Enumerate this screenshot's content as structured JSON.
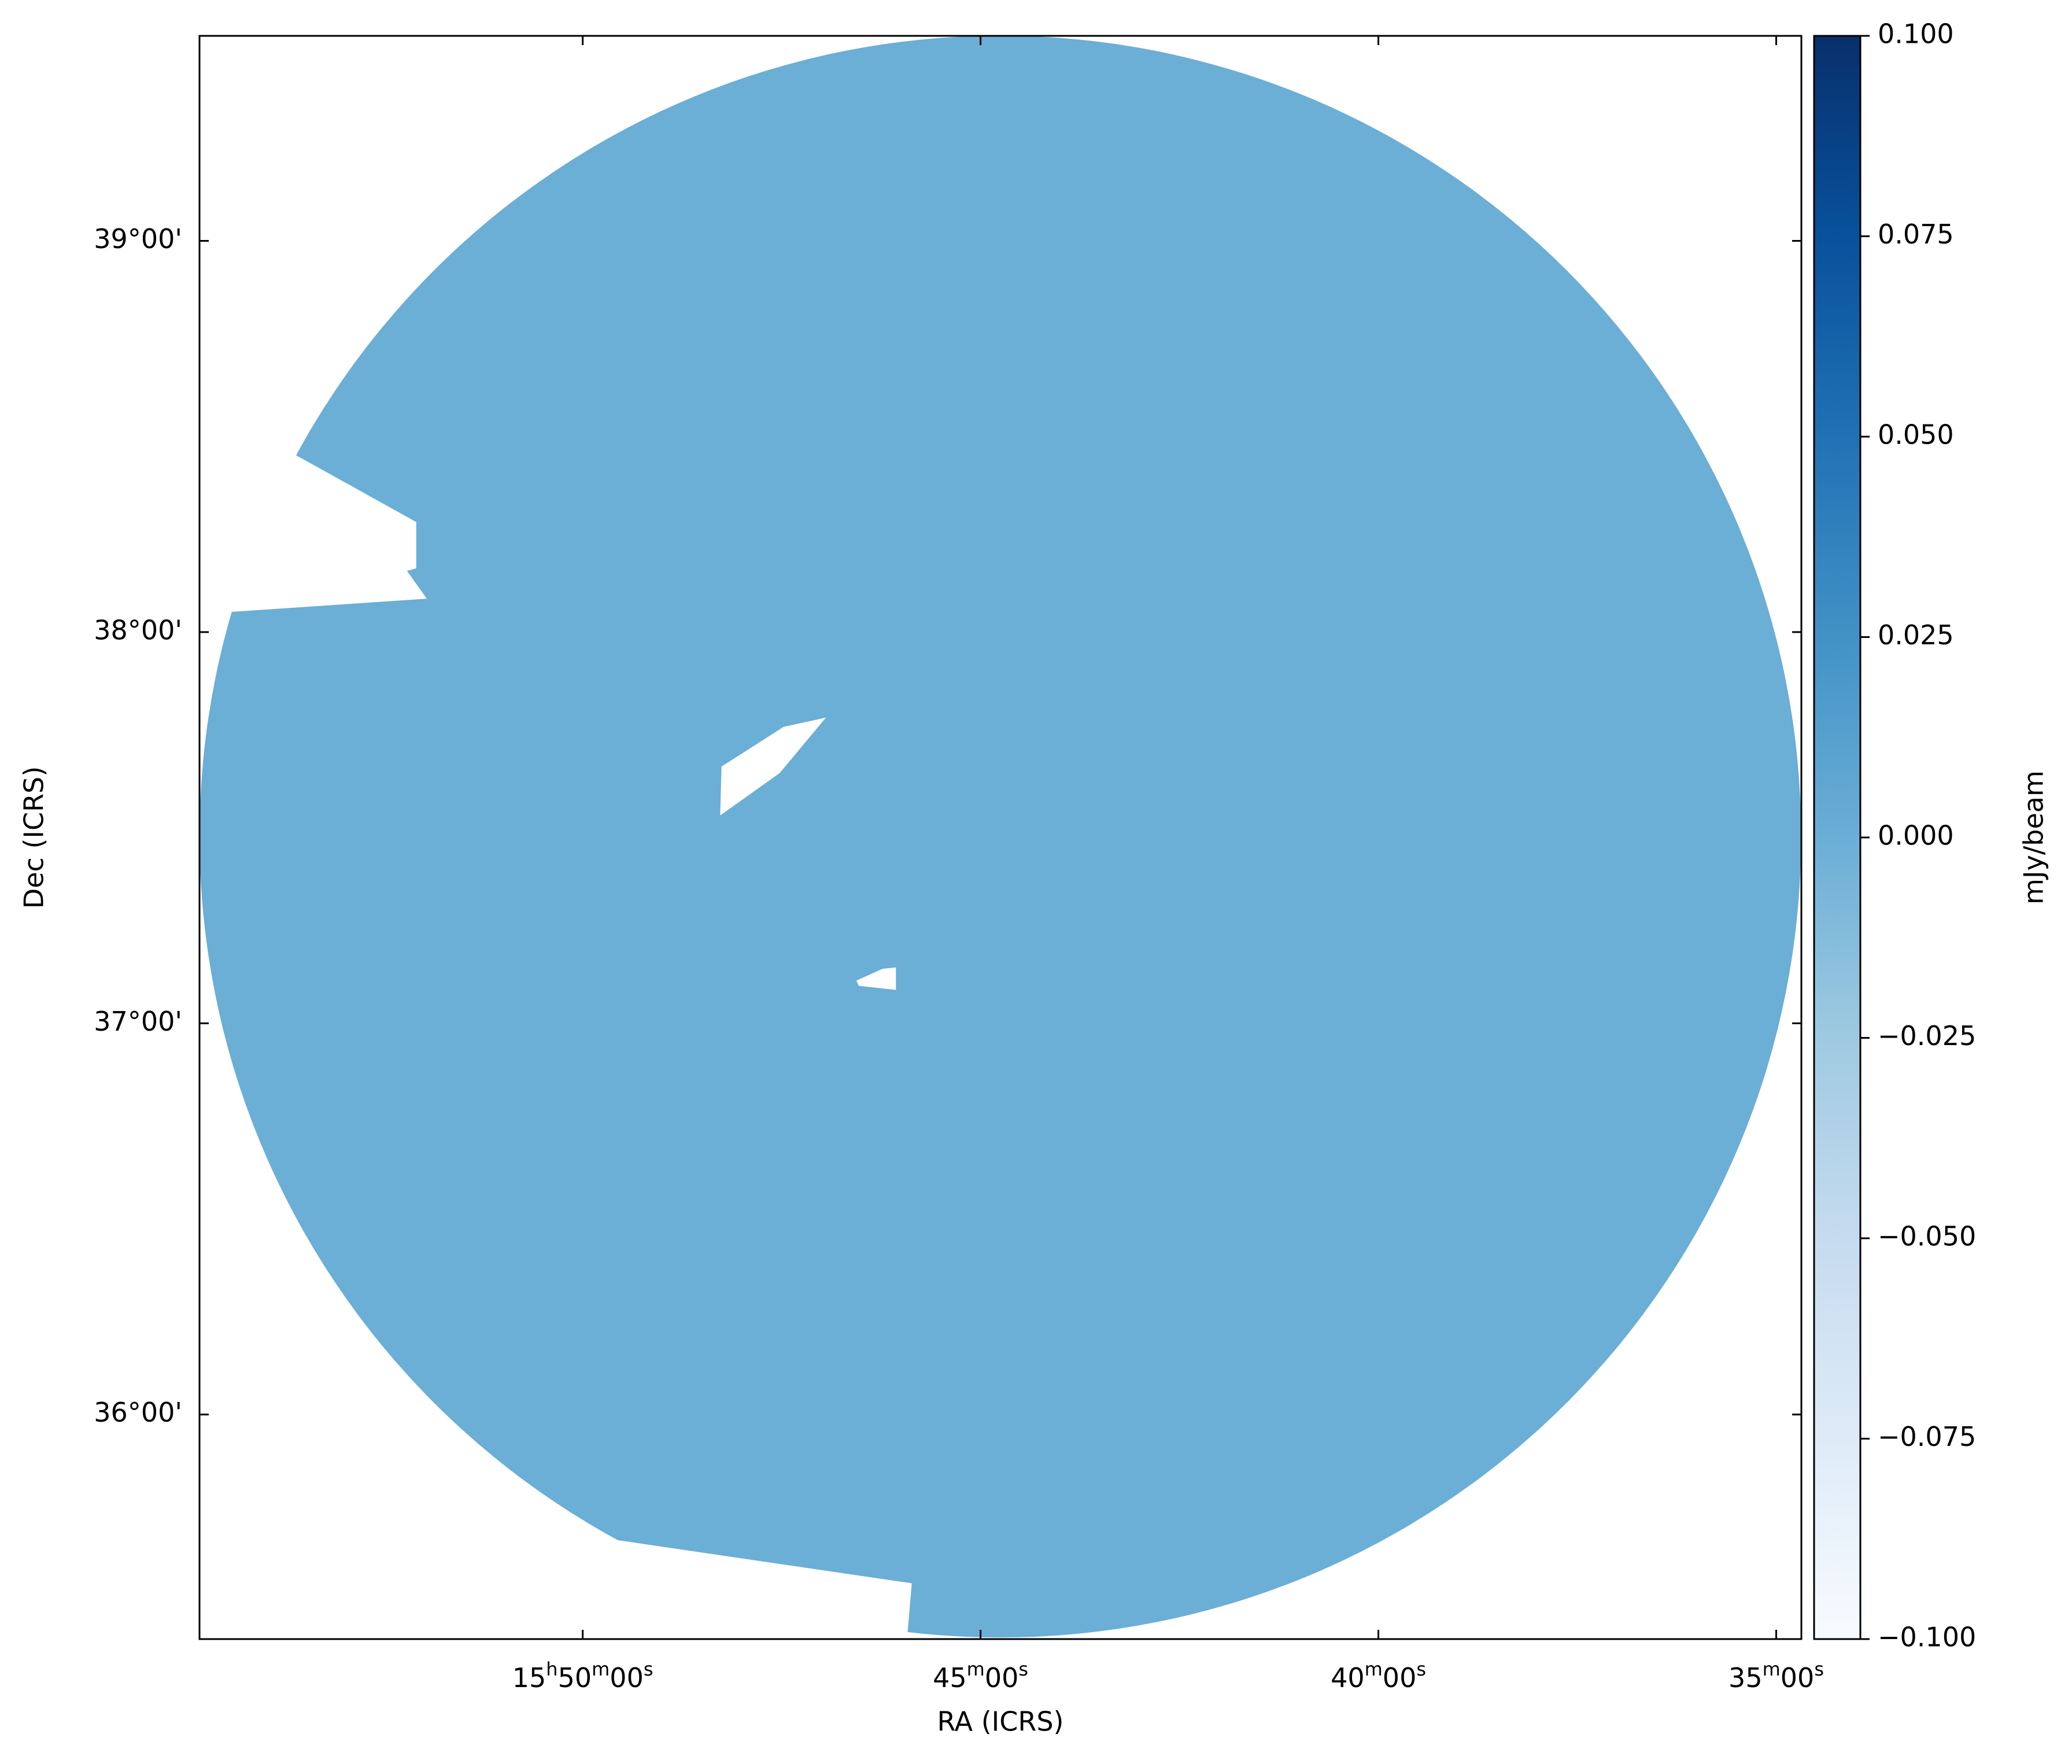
{
  "chart_data": {
    "type": "image",
    "x_label": "RA (ICRS)",
    "y_label": "Dec (ICRS)",
    "colorbar_label": "mJy/beam",
    "map_color": "#6baed6",
    "xlim": [
      238.704,
      233.671
    ],
    "ylim": [
      35.426,
      39.524
    ],
    "xticks": [
      {
        "value": 237.5,
        "label": "15h50m00s"
      },
      {
        "value": 236.25,
        "label": "45m00s"
      },
      {
        "value": 235,
        "label": "40m00s"
      },
      {
        "value": 233.75,
        "label": "35m00s"
      }
    ],
    "yticks": [
      {
        "value": 36,
        "label": "36°00'"
      },
      {
        "value": 37,
        "label": "37°00'"
      },
      {
        "value": 38,
        "label": "38°00'"
      },
      {
        "value": 39,
        "label": "39°00'"
      }
    ],
    "clim": [
      -0.1,
      0.1
    ],
    "cticks": [
      {
        "value": -0.1,
        "label": "−0.100"
      },
      {
        "value": -0.075,
        "label": "−0.075"
      },
      {
        "value": -0.05,
        "label": "−0.050"
      },
      {
        "value": -0.025,
        "label": "−0.025"
      },
      {
        "value": 0,
        "label": "0.000"
      },
      {
        "value": 0.025,
        "label": "0.025"
      },
      {
        "value": 0.05,
        "label": "0.050"
      },
      {
        "value": 0.075,
        "label": "0.075"
      },
      {
        "value": 0.1,
        "label": "0.100"
      }
    ],
    "cmap_colors": [
      "#f7fbff",
      "#deebf7",
      "#c6dbef",
      "#9ecae1",
      "#6baed6",
      "#4292c6",
      "#2171b5",
      "#08519c",
      "#08306b"
    ]
  }
}
